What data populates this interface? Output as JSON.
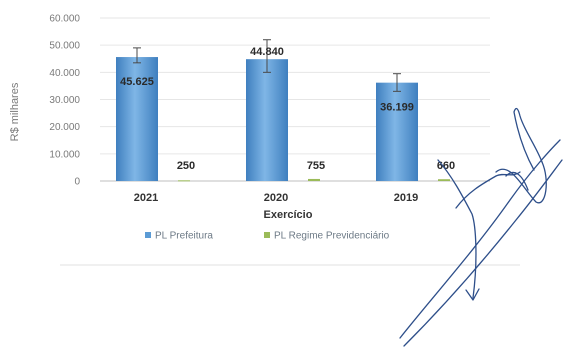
{
  "chart_data": {
    "type": "bar",
    "categories": [
      "2021",
      "2020",
      "2019"
    ],
    "xlabel": "Exercício",
    "ylabel": "R$ milhares",
    "ylim": [
      0,
      60000
    ],
    "yticks": [
      "0",
      "10.000",
      "20.000",
      "30.000",
      "40.000",
      "50.000",
      "60.000"
    ],
    "legend_position": "bottom",
    "series": [
      {
        "name": "PL Prefeitura",
        "color": "#5b9bd5",
        "values": [
          45625,
          44840,
          36199
        ],
        "labels": [
          "45.625",
          "44.840",
          "36.199"
        ],
        "error_high": [
          49000,
          52000,
          39500
        ],
        "error_low": [
          43500,
          40000,
          33000
        ]
      },
      {
        "name": "PL Regime Previdenciário",
        "color": "#9bbb59",
        "values": [
          250,
          755,
          660
        ],
        "labels": [
          "250",
          "755",
          "660"
        ]
      }
    ]
  },
  "colors": {
    "grid": "#e6e6e6",
    "axis": "#bfbfbf",
    "annotation_ink": "#2e4f8a"
  }
}
